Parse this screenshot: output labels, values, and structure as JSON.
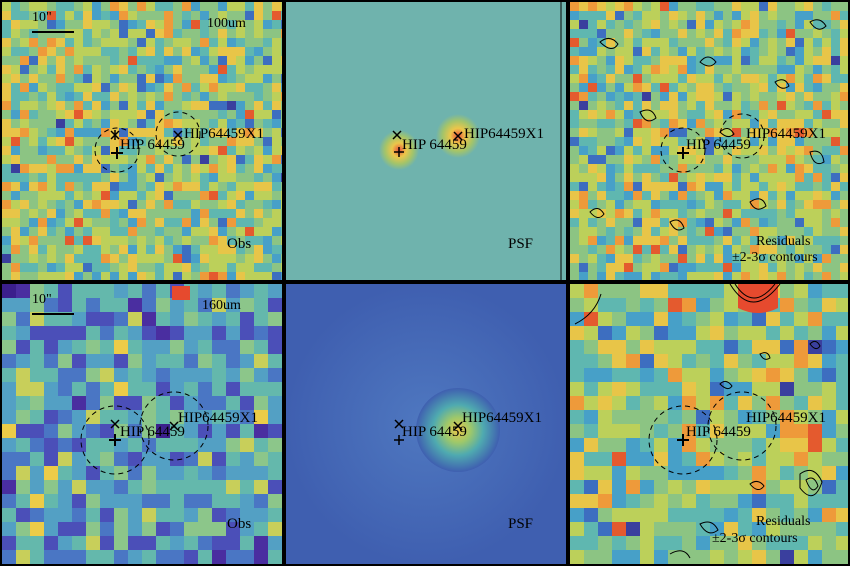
{
  "colors": {
    "background": "#ffffff",
    "frame": "#000000",
    "psf_100_background": "#6fb3ad",
    "psf_160_background": "#3f5fb0",
    "hot_source": "#e64a2e",
    "warm_source": "#e9c64a"
  },
  "rows": [
    {
      "band_label": "100um",
      "scale_bar_label": "10\"",
      "panels": [
        {
          "id": "obs",
          "label_lines": [
            "Obs"
          ]
        },
        {
          "id": "psf",
          "label_lines": [
            "PSF"
          ]
        },
        {
          "id": "res",
          "label_lines": [
            "Residuals",
            "±2-3σ contours"
          ]
        }
      ],
      "sources": [
        {
          "name": "HIP 64459",
          "marker": "+"
        },
        {
          "name": "HIP64459X1",
          "marker": "*"
        }
      ]
    },
    {
      "band_label": "160um",
      "scale_bar_label": "10\"",
      "panels": [
        {
          "id": "obs",
          "label_lines": [
            "Obs"
          ]
        },
        {
          "id": "psf",
          "label_lines": [
            "PSF"
          ]
        },
        {
          "id": "res",
          "label_lines": [
            "Residuals",
            "±2-3σ contours"
          ]
        }
      ],
      "sources": [
        {
          "name": "HIP 64459",
          "marker": "+"
        },
        {
          "name": "HIP64459X1",
          "marker": "*"
        }
      ]
    }
  ]
}
